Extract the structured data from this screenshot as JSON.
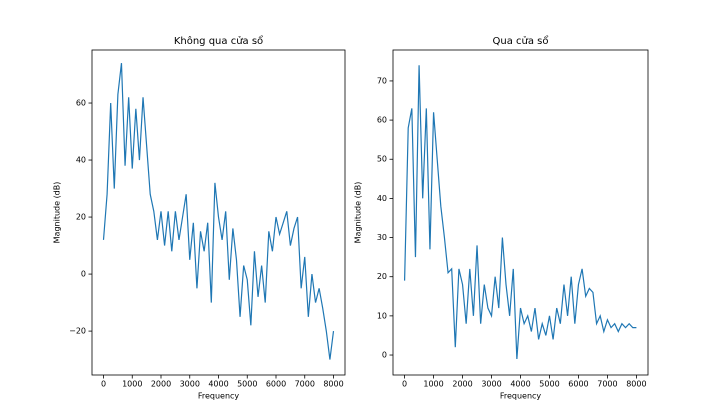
{
  "chart_data": [
    {
      "type": "line",
      "title": "Không qua cửa sổ",
      "xlabel": "Frequency",
      "ylabel": "Magnitude (dB)",
      "x": [
        0,
        125,
        250,
        375,
        500,
        625,
        750,
        875,
        1000,
        1125,
        1250,
        1375,
        1500,
        1625,
        1750,
        1875,
        2000,
        2125,
        2250,
        2375,
        2500,
        2625,
        2750,
        2875,
        3000,
        3125,
        3250,
        3375,
        3500,
        3625,
        3750,
        3875,
        4000,
        4125,
        4250,
        4375,
        4500,
        4625,
        4750,
        4875,
        5000,
        5125,
        5250,
        5375,
        5500,
        5625,
        5750,
        5875,
        6000,
        6125,
        6250,
        6375,
        6500,
        6625,
        6750,
        6875,
        7000,
        7125,
        7250,
        7375,
        7500,
        7625,
        7750,
        7875,
        8000
      ],
      "series": [
        {
          "name": "Không qua cửa sổ",
          "color": "#1f77b4",
          "values": [
            12,
            28,
            60,
            30,
            63,
            74,
            38,
            62,
            37,
            58,
            40,
            62,
            45,
            28,
            22,
            12,
            22,
            10,
            22,
            8,
            22,
            12,
            20,
            28,
            5,
            18,
            -5,
            15,
            8,
            18,
            -10,
            32,
            20,
            12,
            22,
            -2,
            16,
            5,
            -15,
            3,
            -2,
            -18,
            8,
            -8,
            3,
            -10,
            15,
            8,
            20,
            14,
            18,
            22,
            10,
            16,
            20,
            -5,
            6,
            -15,
            0,
            -10,
            -5,
            -12,
            -20,
            -30,
            -20
          ]
        }
      ],
      "xlim": [
        -400,
        8400
      ],
      "ylim": [
        -35.4,
        78.6
      ],
      "xticks": [
        0,
        1000,
        2000,
        3000,
        4000,
        5000,
        6000,
        7000,
        8000
      ],
      "yticks": [
        {
          "value": -20,
          "label": "−20"
        },
        0,
        20,
        40,
        60
      ]
    },
    {
      "type": "line",
      "title": "Qua cửa sổ",
      "xlabel": "Frequency",
      "ylabel": "Magnitude (dB)",
      "x": [
        0,
        125,
        250,
        375,
        500,
        625,
        750,
        875,
        1000,
        1125,
        1250,
        1375,
        1500,
        1625,
        1750,
        1875,
        2000,
        2125,
        2250,
        2375,
        2500,
        2625,
        2750,
        2875,
        3000,
        3125,
        3250,
        3375,
        3500,
        3625,
        3750,
        3875,
        4000,
        4125,
        4250,
        4375,
        4500,
        4625,
        4750,
        4875,
        5000,
        5125,
        5250,
        5375,
        5500,
        5625,
        5750,
        5875,
        6000,
        6125,
        6250,
        6375,
        6500,
        6625,
        6750,
        6875,
        7000,
        7125,
        7250,
        7375,
        7500,
        7625,
        7750,
        7875,
        8000
      ],
      "series": [
        {
          "name": "Qua cửa sổ",
          "color": "#1f77b4",
          "values": [
            19,
            58,
            63,
            25,
            74,
            40,
            63,
            27,
            62,
            50,
            38,
            30,
            21,
            22,
            2,
            22,
            18,
            8,
            22,
            10,
            28,
            8,
            18,
            12,
            10,
            20,
            12,
            30,
            18,
            10,
            22,
            -1,
            12,
            8,
            10,
            6,
            12,
            4,
            8,
            5,
            10,
            4,
            12,
            8,
            18,
            10,
            20,
            8,
            18,
            22,
            15,
            17,
            16,
            8,
            10,
            6,
            9,
            7,
            8,
            6,
            8,
            7,
            8,
            7,
            7
          ]
        }
      ],
      "xlim": [
        -400,
        8400
      ],
      "ylim": [
        -5.1,
        77.9
      ],
      "xticks": [
        0,
        1000,
        2000,
        3000,
        4000,
        5000,
        6000,
        7000,
        8000
      ],
      "yticks": [
        0,
        10,
        20,
        30,
        40,
        50,
        60,
        70
      ]
    }
  ]
}
